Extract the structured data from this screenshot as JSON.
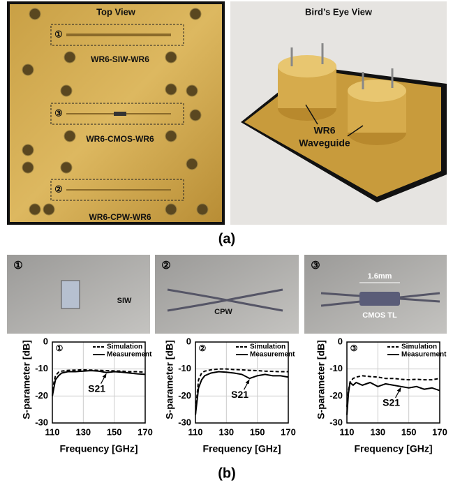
{
  "figure": {
    "panel_a": "(a)",
    "panel_b": "(b)"
  },
  "top_view": {
    "title": "Top View",
    "markers": [
      "①",
      "③",
      "②"
    ],
    "labels": [
      "WR6-SIW-WR6",
      "WR6-CMOS-WR6",
      "WR6-CPW-WR6"
    ]
  },
  "birds_eye": {
    "title": "Bird’s Eye View",
    "label_lines": [
      "WR6",
      "Waveguide"
    ]
  },
  "closeups": [
    {
      "marker": "①",
      "label": "SIW"
    },
    {
      "marker": "②",
      "label": "CPW"
    },
    {
      "marker": "③",
      "dimension": "1.6mm",
      "label": "CMOS TL"
    }
  ],
  "chart_data": [
    {
      "type": "line",
      "annotation_marker": "①",
      "annotation": "S21",
      "xlabel": "Frequency [GHz]",
      "ylabel": "S-parameter [dB]",
      "x": [
        110,
        111,
        112,
        114,
        116,
        120,
        125,
        130,
        135,
        140,
        145,
        150,
        155,
        160,
        165,
        170
      ],
      "xlim": [
        110,
        170
      ],
      "xticks": [
        110,
        130,
        150,
        170
      ],
      "ylim": [
        -30,
        0
      ],
      "yticks": [
        0,
        -10,
        -20,
        -30
      ],
      "grid": true,
      "legend": "upper right",
      "series": [
        {
          "name": "Simulation",
          "color": "#000000",
          "style": "dashed",
          "values": [
            -20,
            -15,
            -12.5,
            -11.2,
            -10.8,
            -10.5,
            -10.4,
            -10.3,
            -10.4,
            -10.5,
            -10.6,
            -10.7,
            -10.8,
            -11,
            -11,
            -11.2
          ]
        },
        {
          "name": "Measurement",
          "color": "#000000",
          "style": "solid",
          "values": [
            -20,
            -17,
            -14,
            -12.5,
            -11.5,
            -11,
            -11,
            -10.8,
            -10.6,
            -10.8,
            -11.3,
            -11,
            -11.2,
            -11.5,
            -11.8,
            -12
          ]
        }
      ]
    },
    {
      "type": "line",
      "annotation_marker": "②",
      "annotation": "S21",
      "xlabel": "Frequency [GHz]",
      "ylabel": "S-parameter [dB]",
      "x": [
        110,
        111,
        112,
        114,
        116,
        120,
        125,
        130,
        135,
        140,
        145,
        150,
        155,
        160,
        165,
        170
      ],
      "xlim": [
        110,
        170
      ],
      "xticks": [
        110,
        130,
        150,
        170
      ],
      "ylim": [
        -30,
        0
      ],
      "yticks": [
        0,
        -10,
        -20,
        -30
      ],
      "grid": true,
      "legend": "upper right",
      "series": [
        {
          "name": "Simulation",
          "color": "#000000",
          "style": "dashed",
          "values": [
            -27,
            -20,
            -14,
            -11.5,
            -10.8,
            -10.3,
            -10,
            -10,
            -10.2,
            -10.3,
            -10.5,
            -10.6,
            -10.8,
            -10.9,
            -11,
            -11
          ]
        },
        {
          "name": "Measurement",
          "color": "#000000",
          "style": "solid",
          "values": [
            -27,
            -22,
            -17,
            -14,
            -12.5,
            -11.5,
            -11,
            -11.2,
            -11.5,
            -12,
            -13.5,
            -12.5,
            -12,
            -12.5,
            -12.5,
            -13
          ]
        }
      ]
    },
    {
      "type": "line",
      "annotation_marker": "③",
      "annotation": "S21",
      "xlabel": "Frequency [GHz]",
      "ylabel": "S-parameter [dB]",
      "x": [
        110,
        111,
        112,
        114,
        116,
        120,
        125,
        130,
        135,
        140,
        145,
        150,
        155,
        160,
        165,
        170
      ],
      "xlim": [
        110,
        170
      ],
      "xticks": [
        110,
        130,
        150,
        170
      ],
      "ylim": [
        -30,
        0
      ],
      "yticks": [
        0,
        -10,
        -20,
        -30
      ],
      "grid": true,
      "legend": "upper right",
      "series": [
        {
          "name": "Simulation",
          "color": "#000000",
          "style": "dashed",
          "values": [
            -24,
            -18,
            -15,
            -13.5,
            -13,
            -12.5,
            -12.8,
            -13,
            -13.5,
            -13.5,
            -13.8,
            -14,
            -13.8,
            -14,
            -14,
            -13.5
          ]
        },
        {
          "name": "Measurement",
          "color": "#000000",
          "style": "solid",
          "values": [
            -27,
            -19,
            -15,
            -16,
            -15,
            -16,
            -15,
            -16.5,
            -15.5,
            -16,
            -16.5,
            -17,
            -16.5,
            -17.5,
            -17,
            -18
          ]
        }
      ]
    }
  ]
}
